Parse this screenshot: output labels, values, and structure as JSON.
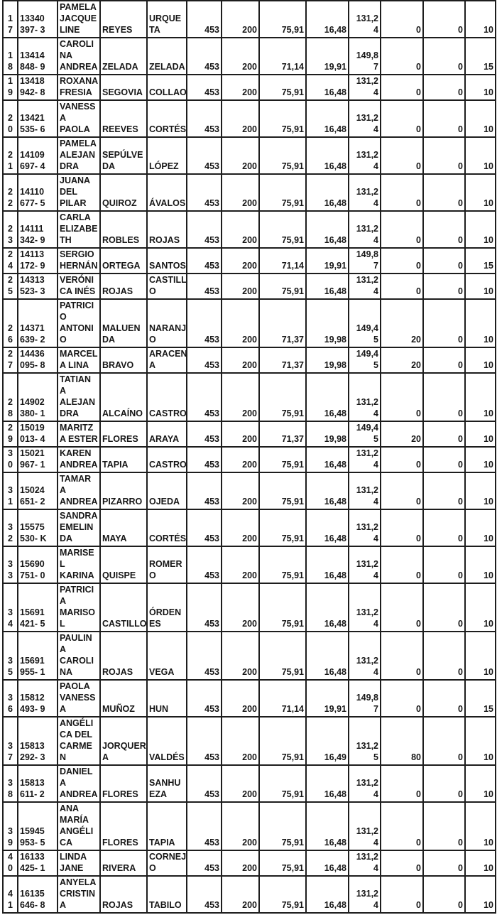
{
  "colors": {
    "background": "#ffffff",
    "border": "#1d1d1d",
    "text": "#161616"
  },
  "table": {
    "rows": [
      {
        "cells": [
          "1\n7",
          "13340\n397- 3",
          "PAMELA\nJACQUE\nLINE",
          "REYES",
          "URQUE\nTA",
          "453",
          "200",
          "75,91",
          "16,48",
          "131,2\n4",
          "0",
          "0",
          "10"
        ]
      },
      {
        "cells": [
          "1\n8",
          "13414\n848- 9",
          "CAROLI\nNA\nANDREA",
          "ZELADA",
          "ZELADA",
          "453",
          "200",
          "71,14",
          "19,91",
          "149,8\n7",
          "0",
          "0",
          "15"
        ]
      },
      {
        "cells": [
          "1\n9",
          "13418\n942- 8",
          "ROXANA\nFRESIA",
          "SEGOVIA",
          "COLLAO",
          "453",
          "200",
          "75,91",
          "16,48",
          "131,2\n4",
          "0",
          "0",
          "10"
        ]
      },
      {
        "cells": [
          "2\n0",
          "13421\n535- 6",
          "VANESS\nA\nPAOLA",
          "REEVES",
          "CORTÉS",
          "453",
          "200",
          "75,91",
          "16,48",
          "131,2\n4",
          "0",
          "0",
          "10"
        ]
      },
      {
        "cells": [
          "2\n1",
          "14109\n697- 4",
          "PAMELA\nALEJAN\nDRA",
          "SEPÚLVE\nDA",
          "LÓPEZ",
          "453",
          "200",
          "75,91",
          "16,48",
          "131,2\n4",
          "0",
          "0",
          "10"
        ]
      },
      {
        "cells": [
          "2\n2",
          "14110\n677- 5",
          "JUANA\nDEL\nPILAR",
          "QUIROZ",
          "ÁVALOS",
          "453",
          "200",
          "75,91",
          "16,48",
          "131,2\n4",
          "0",
          "0",
          "10"
        ]
      },
      {
        "cells": [
          "2\n3",
          "14111\n342- 9",
          "CARLA\nELIZABE\nTH",
          "ROBLES",
          "ROJAS",
          "453",
          "200",
          "75,91",
          "16,48",
          "131,2\n4",
          "0",
          "0",
          "10"
        ]
      },
      {
        "cells": [
          "2\n4",
          "14113\n172- 9",
          "SERGIO\nHERNÁN",
          "ORTEGA",
          "SANTOS",
          "453",
          "200",
          "71,14",
          "19,91",
          "149,8\n7",
          "0",
          "0",
          "15"
        ]
      },
      {
        "cells": [
          "2\n5",
          "14313\n523- 3",
          "VERÓNI\nCA INÉS",
          "ROJAS",
          "CASTILL\nO",
          "453",
          "200",
          "75,91",
          "16,48",
          "131,2\n4",
          "0",
          "0",
          "10"
        ]
      },
      {
        "cells": [
          "2\n6",
          "14371\n639- 2",
          "PATRICI\nO\nANTONI\nO",
          "MALUEN\nDA",
          "NARANJ\nO",
          "453",
          "200",
          "71,37",
          "19,98",
          "149,4\n5",
          "20",
          "0",
          "10"
        ]
      },
      {
        "cells": [
          "2\n7",
          "14436\n095- 8",
          "MARCEL\nA LINA",
          "BRAVO",
          "ARACEN\nA",
          "453",
          "200",
          "71,37",
          "19,98",
          "149,4\n5",
          "20",
          "0",
          "10"
        ]
      },
      {
        "cells": [
          "2\n8",
          "14902\n380- 1",
          "TATIAN\nA\nALEJAN\nDRA",
          "ALCAÍNO",
          "CASTRO",
          "453",
          "200",
          "75,91",
          "16,48",
          "131,2\n4",
          "0",
          "0",
          "10"
        ]
      },
      {
        "cells": [
          "2\n9",
          "15019\n013- 4",
          "MARITZ\nA ESTER",
          "FLORES",
          "ARAYA",
          "453",
          "200",
          "71,37",
          "19,98",
          "149,4\n5",
          "20",
          "0",
          "10"
        ]
      },
      {
        "cells": [
          "3\n0",
          "15021\n967- 1",
          "KAREN\nANDREA",
          "TAPIA",
          "CASTRO",
          "453",
          "200",
          "75,91",
          "16,48",
          "131,2\n4",
          "0",
          "0",
          "10"
        ]
      },
      {
        "cells": [
          "3\n1",
          "15024\n651- 2",
          "TAMAR\nA\nANDREA",
          "PIZARRO",
          "OJEDA",
          "453",
          "200",
          "75,91",
          "16,48",
          "131,2\n4",
          "0",
          "0",
          "10"
        ]
      },
      {
        "cells": [
          "3\n2",
          "15575\n530- K",
          "SANDRA\nEMELIN\nDA",
          "MAYA",
          "CORTÉS",
          "453",
          "200",
          "75,91",
          "16,48",
          "131,2\n4",
          "0",
          "0",
          "10"
        ]
      },
      {
        "cells": [
          "3\n3",
          "15690\n751- 0",
          "MARISE\nL\nKARINA",
          "QUISPE",
          "ROMER\nO",
          "453",
          "200",
          "75,91",
          "16,48",
          "131,2\n4",
          "0",
          "0",
          "10"
        ]
      },
      {
        "cells": [
          "3\n4",
          "15691\n421- 5",
          "PATRICI\nA\nMARISO\nL",
          "CASTILLO",
          "ÓRDEN\nES",
          "453",
          "200",
          "75,91",
          "16,48",
          "131,2\n4",
          "0",
          "0",
          "10"
        ]
      },
      {
        "cells": [
          "3\n5",
          "15691\n955- 1",
          "PAULIN\nA\nCAROLI\nNA",
          "ROJAS",
          "VEGA",
          "453",
          "200",
          "75,91",
          "16,48",
          "131,2\n4",
          "0",
          "0",
          "10"
        ]
      },
      {
        "cells": [
          "3\n6",
          "15812\n493- 9",
          "PAOLA\nVANESS\nA",
          "MUÑOZ",
          "HUN",
          "453",
          "200",
          "71,14",
          "19,91",
          "149,8\n7",
          "0",
          "0",
          "15"
        ]
      },
      {
        "cells": [
          "3\n7",
          "15813\n292- 3",
          "ANGÉLI\nCA DEL\nCARME\nN",
          "JORQUER\nA",
          "VALDÉS",
          "453",
          "200",
          "75,91",
          "16,49",
          "131,2\n5",
          "80",
          "0",
          "10"
        ]
      },
      {
        "cells": [
          "3\n8",
          "15813\n611- 2",
          "DANIEL\nA\nANDREA",
          "FLORES",
          "SANHU\nEZA",
          "453",
          "200",
          "75,91",
          "16,48",
          "131,2\n4",
          "0",
          "0",
          "10"
        ]
      },
      {
        "cells": [
          "3\n9",
          "15945\n953- 5",
          "ANA\nMARÍA\nANGÉLI\nCA",
          "FLORES",
          "TAPIA",
          "453",
          "200",
          "75,91",
          "16,48",
          "131,2\n4",
          "0",
          "0",
          "10"
        ]
      },
      {
        "cells": [
          "4\n0",
          "16133\n425- 1",
          "LINDA\nJANE",
          "RIVERA",
          "CORNEJ\nO",
          "453",
          "200",
          "75,91",
          "16,48",
          "131,2\n4",
          "0",
          "0",
          "10"
        ]
      },
      {
        "cells": [
          "4\n1",
          "16135\n646- 8",
          "ANYELA\nCRISTIN\nA",
          "ROJAS",
          "TABILO",
          "453",
          "200",
          "75,91",
          "16,48",
          "131,2\n4",
          "0",
          "0",
          "10"
        ]
      }
    ]
  }
}
